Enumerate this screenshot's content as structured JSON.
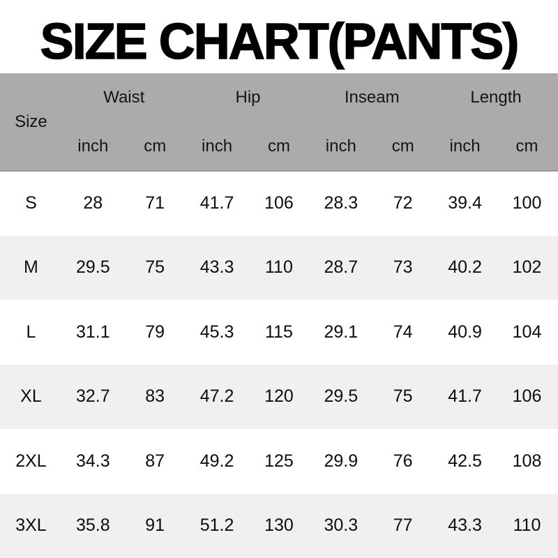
{
  "title": "SIZE CHART(PANTS)",
  "colors": {
    "header_bg": "#ababab",
    "header_border": "#989898",
    "row_bg": "#ffffff",
    "row_alt_bg": "#f0f0f0",
    "text": "#0d0d0d",
    "title_text": "#000000"
  },
  "table": {
    "size_label": "Size",
    "groups": [
      {
        "label": "Waist",
        "units": [
          "inch",
          "cm"
        ]
      },
      {
        "label": "Hip",
        "units": [
          "inch",
          "cm"
        ]
      },
      {
        "label": "Inseam",
        "units": [
          "inch",
          "cm"
        ]
      },
      {
        "label": "Length",
        "units": [
          "inch",
          "cm"
        ]
      }
    ],
    "rows": [
      {
        "size": "S",
        "values": [
          "28",
          "71",
          "41.7",
          "106",
          "28.3",
          "72",
          "39.4",
          "100"
        ]
      },
      {
        "size": "M",
        "values": [
          "29.5",
          "75",
          "43.3",
          "110",
          "28.7",
          "73",
          "40.2",
          "102"
        ]
      },
      {
        "size": "L",
        "values": [
          "31.1",
          "79",
          "45.3",
          "115",
          "29.1",
          "74",
          "40.9",
          "104"
        ]
      },
      {
        "size": "XL",
        "values": [
          "32.7",
          "83",
          "47.2",
          "120",
          "29.5",
          "75",
          "41.7",
          "106"
        ]
      },
      {
        "size": "2XL",
        "values": [
          "34.3",
          "87",
          "49.2",
          "125",
          "29.9",
          "76",
          "42.5",
          "108"
        ]
      },
      {
        "size": "3XL",
        "values": [
          "35.8",
          "91",
          "51.2",
          "130",
          "30.3",
          "77",
          "43.3",
          "110"
        ]
      }
    ]
  },
  "chart_data": {
    "type": "table",
    "title": "SIZE CHART(PANTS)",
    "columns": [
      "Size",
      "Waist inch",
      "Waist cm",
      "Hip inch",
      "Hip cm",
      "Inseam inch",
      "Inseam cm",
      "Length inch",
      "Length cm"
    ],
    "rows": [
      [
        "S",
        28,
        71,
        41.7,
        106,
        28.3,
        72,
        39.4,
        100
      ],
      [
        "M",
        29.5,
        75,
        43.3,
        110,
        28.7,
        73,
        40.2,
        102
      ],
      [
        "L",
        31.1,
        79,
        45.3,
        115,
        29.1,
        74,
        40.9,
        104
      ],
      [
        "XL",
        32.7,
        83,
        47.2,
        120,
        29.5,
        75,
        41.7,
        106
      ],
      [
        "2XL",
        34.3,
        87,
        49.2,
        125,
        29.9,
        76,
        42.5,
        108
      ],
      [
        "3XL",
        35.8,
        91,
        51.2,
        130,
        30.3,
        77,
        43.3,
        110
      ]
    ],
    "layout": {
      "header_rows": 2,
      "striped": true,
      "grid": false
    }
  }
}
